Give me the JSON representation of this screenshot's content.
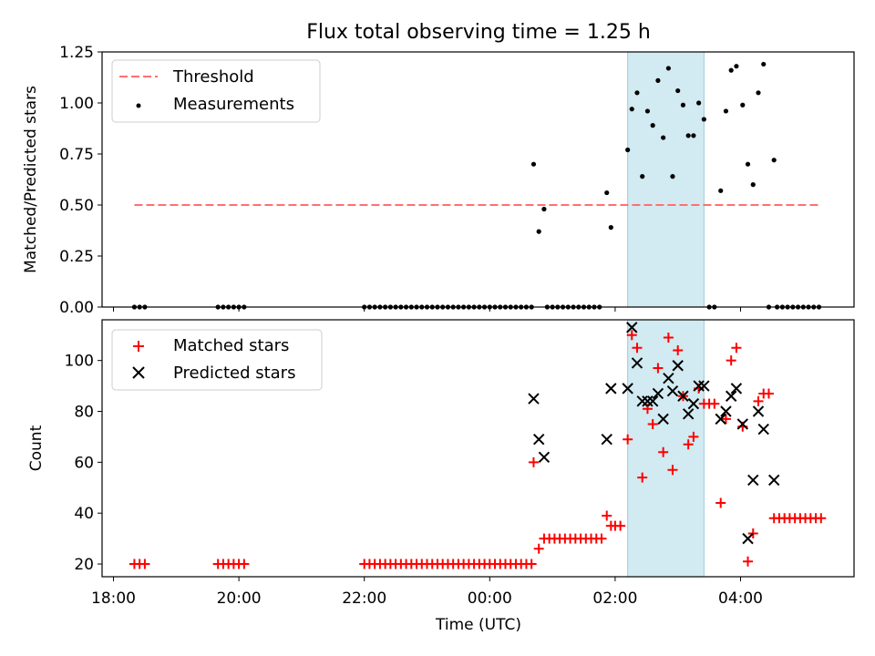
{
  "title": "Flux total observing time = 1.25 h",
  "colors": {
    "threshold": "#ff7070",
    "measurement": "#000000",
    "matched": "#ff0000",
    "predicted": "#000000",
    "span": "#add8e6"
  },
  "chart_data": [
    {
      "type": "scatter",
      "ylabel": "Matched/Predicted stars",
      "ylim": [
        0,
        1.25
      ],
      "yticks": [
        "0.00",
        "0.25",
        "0.50",
        "0.75",
        "1.00",
        "1.25"
      ],
      "legend": {
        "placement": "top-left",
        "entries": [
          "Threshold",
          "Measurements"
        ]
      },
      "threshold": {
        "name": "Threshold",
        "value": 0.5,
        "x_range": [
          "18:20",
          "05:17"
        ],
        "style": "dashed"
      },
      "highlight_span": [
        "02:12",
        "03:25"
      ],
      "measurements": {
        "name": "Measurements",
        "points": [
          [
            "18:20",
            0
          ],
          [
            "18:25",
            0
          ],
          [
            "18:30",
            0
          ],
          [
            "19:40",
            0
          ],
          [
            "19:45",
            0
          ],
          [
            "19:50",
            0
          ],
          [
            "19:55",
            0
          ],
          [
            "20:00",
            0
          ],
          [
            "20:05",
            0
          ],
          [
            "22:00",
            0
          ],
          [
            "22:05",
            0
          ],
          [
            "22:10",
            0
          ],
          [
            "22:15",
            0
          ],
          [
            "22:20",
            0
          ],
          [
            "22:25",
            0
          ],
          [
            "22:30",
            0
          ],
          [
            "22:35",
            0
          ],
          [
            "22:40",
            0
          ],
          [
            "22:45",
            0
          ],
          [
            "22:50",
            0
          ],
          [
            "22:55",
            0
          ],
          [
            "23:00",
            0
          ],
          [
            "23:05",
            0
          ],
          [
            "23:10",
            0
          ],
          [
            "23:15",
            0
          ],
          [
            "23:20",
            0
          ],
          [
            "23:25",
            0
          ],
          [
            "23:30",
            0
          ],
          [
            "23:35",
            0
          ],
          [
            "23:40",
            0
          ],
          [
            "23:45",
            0
          ],
          [
            "23:50",
            0
          ],
          [
            "23:55",
            0
          ],
          [
            "00:00",
            0
          ],
          [
            "00:05",
            0
          ],
          [
            "00:10",
            0
          ],
          [
            "00:15",
            0
          ],
          [
            "00:20",
            0
          ],
          [
            "00:25",
            0
          ],
          [
            "00:30",
            0
          ],
          [
            "00:35",
            0
          ],
          [
            "00:40",
            0
          ],
          [
            "00:42",
            0.7
          ],
          [
            "00:47",
            0.37
          ],
          [
            "00:52",
            0.48
          ],
          [
            "00:55",
            0
          ],
          [
            "01:00",
            0
          ],
          [
            "01:05",
            0
          ],
          [
            "01:10",
            0
          ],
          [
            "01:15",
            0
          ],
          [
            "01:20",
            0
          ],
          [
            "01:25",
            0
          ],
          [
            "01:30",
            0
          ],
          [
            "01:35",
            0
          ],
          [
            "01:40",
            0
          ],
          [
            "01:45",
            0
          ],
          [
            "01:52",
            0.56
          ],
          [
            "01:56",
            0.39
          ],
          [
            "02:12",
            0.77
          ],
          [
            "02:16",
            0.97
          ],
          [
            "02:21",
            1.05
          ],
          [
            "02:26",
            0.64
          ],
          [
            "02:31",
            0.96
          ],
          [
            "02:36",
            0.89
          ],
          [
            "02:41",
            1.11
          ],
          [
            "02:46",
            0.83
          ],
          [
            "02:51",
            1.17
          ],
          [
            "02:55",
            0.64
          ],
          [
            "03:00",
            1.06
          ],
          [
            "03:05",
            0.99
          ],
          [
            "03:10",
            0.84
          ],
          [
            "03:15",
            0.84
          ],
          [
            "03:20",
            1.0
          ],
          [
            "03:25",
            0.92
          ],
          [
            "03:30",
            0
          ],
          [
            "03:35",
            0
          ],
          [
            "03:41",
            0.57
          ],
          [
            "03:46",
            0.96
          ],
          [
            "03:51",
            1.16
          ],
          [
            "03:56",
            1.18
          ],
          [
            "04:02",
            0.99
          ],
          [
            "04:07",
            0.7
          ],
          [
            "04:12",
            0.6
          ],
          [
            "04:17",
            1.05
          ],
          [
            "04:22",
            1.19
          ],
          [
            "04:32",
            0.72
          ],
          [
            "04:27",
            0
          ],
          [
            "04:35",
            0
          ],
          [
            "04:40",
            0
          ],
          [
            "04:45",
            0
          ],
          [
            "04:50",
            0
          ],
          [
            "04:55",
            0
          ],
          [
            "05:00",
            0
          ],
          [
            "05:05",
            0
          ],
          [
            "05:10",
            0
          ],
          [
            "05:15",
            0
          ]
        ]
      }
    },
    {
      "type": "scatter",
      "xlabel": "Time (UTC)",
      "ylabel": "Count",
      "ylim": [
        15,
        116
      ],
      "yticks": [
        "20",
        "40",
        "60",
        "80",
        "100"
      ],
      "xticks": [
        "18:00",
        "20:00",
        "22:00",
        "00:00",
        "02:00",
        "04:00"
      ],
      "legend": {
        "placement": "top-left",
        "entries": [
          "Matched stars",
          "Predicted stars"
        ]
      },
      "highlight_span": [
        "02:12",
        "03:25"
      ],
      "series": [
        {
          "name": "Matched stars",
          "marker": "plus",
          "points": [
            [
              "18:20",
              20
            ],
            [
              "18:25",
              20
            ],
            [
              "18:30",
              20
            ],
            [
              "19:40",
              20
            ],
            [
              "19:45",
              20
            ],
            [
              "19:50",
              20
            ],
            [
              "19:55",
              20
            ],
            [
              "20:00",
              20
            ],
            [
              "20:05",
              20
            ],
            [
              "22:00",
              20
            ],
            [
              "22:05",
              20
            ],
            [
              "22:10",
              20
            ],
            [
              "22:15",
              20
            ],
            [
              "22:20",
              20
            ],
            [
              "22:25",
              20
            ],
            [
              "22:30",
              20
            ],
            [
              "22:35",
              20
            ],
            [
              "22:40",
              20
            ],
            [
              "22:45",
              20
            ],
            [
              "22:50",
              20
            ],
            [
              "22:55",
              20
            ],
            [
              "23:00",
              20
            ],
            [
              "23:05",
              20
            ],
            [
              "23:10",
              20
            ],
            [
              "23:15",
              20
            ],
            [
              "23:20",
              20
            ],
            [
              "23:25",
              20
            ],
            [
              "23:30",
              20
            ],
            [
              "23:35",
              20
            ],
            [
              "23:40",
              20
            ],
            [
              "23:45",
              20
            ],
            [
              "23:50",
              20
            ],
            [
              "23:55",
              20
            ],
            [
              "00:00",
              20
            ],
            [
              "00:05",
              20
            ],
            [
              "00:10",
              20
            ],
            [
              "00:15",
              20
            ],
            [
              "00:20",
              20
            ],
            [
              "00:25",
              20
            ],
            [
              "00:30",
              20
            ],
            [
              "00:35",
              20
            ],
            [
              "00:40",
              20
            ],
            [
              "00:42",
              60
            ],
            [
              "00:47",
              26
            ],
            [
              "00:52",
              30
            ],
            [
              "00:57",
              30
            ],
            [
              "01:02",
              30
            ],
            [
              "01:07",
              30
            ],
            [
              "01:12",
              30
            ],
            [
              "01:17",
              30
            ],
            [
              "01:22",
              30
            ],
            [
              "01:27",
              30
            ],
            [
              "01:32",
              30
            ],
            [
              "01:37",
              30
            ],
            [
              "01:42",
              30
            ],
            [
              "01:47",
              30
            ],
            [
              "01:52",
              39
            ],
            [
              "01:56",
              35
            ],
            [
              "02:00",
              35
            ],
            [
              "02:05",
              35
            ],
            [
              "02:12",
              69
            ],
            [
              "02:16",
              110
            ],
            [
              "02:21",
              105
            ],
            [
              "02:26",
              54
            ],
            [
              "02:31",
              81
            ],
            [
              "02:36",
              75
            ],
            [
              "02:41",
              97
            ],
            [
              "02:46",
              64
            ],
            [
              "02:51",
              109
            ],
            [
              "02:55",
              57
            ],
            [
              "03:00",
              104
            ],
            [
              "03:05",
              86
            ],
            [
              "03:10",
              67
            ],
            [
              "03:15",
              70
            ],
            [
              "03:20",
              89
            ],
            [
              "03:25",
              83
            ],
            [
              "03:30",
              83
            ],
            [
              "03:35",
              83
            ],
            [
              "03:41",
              44
            ],
            [
              "03:46",
              77
            ],
            [
              "03:51",
              100
            ],
            [
              "03:56",
              105
            ],
            [
              "04:02",
              74
            ],
            [
              "04:07",
              21
            ],
            [
              "04:12",
              32
            ],
            [
              "04:17",
              84
            ],
            [
              "04:22",
              87
            ],
            [
              "04:27",
              87
            ],
            [
              "04:32",
              38
            ],
            [
              "04:37",
              38
            ],
            [
              "04:42",
              38
            ],
            [
              "04:47",
              38
            ],
            [
              "04:52",
              38
            ],
            [
              "04:57",
              38
            ],
            [
              "05:02",
              38
            ],
            [
              "05:07",
              38
            ],
            [
              "05:12",
              38
            ],
            [
              "05:17",
              38
            ]
          ]
        },
        {
          "name": "Predicted stars",
          "marker": "x",
          "points": [
            [
              "00:42",
              85
            ],
            [
              "00:47",
              69
            ],
            [
              "00:52",
              62
            ],
            [
              "01:52",
              69
            ],
            [
              "01:56",
              89
            ],
            [
              "02:12",
              89
            ],
            [
              "02:16",
              113
            ],
            [
              "02:21",
              99
            ],
            [
              "02:26",
              84
            ],
            [
              "02:31",
              84
            ],
            [
              "02:36",
              84
            ],
            [
              "02:41",
              87
            ],
            [
              "02:46",
              77
            ],
            [
              "02:51",
              93
            ],
            [
              "02:55",
              88
            ],
            [
              "03:00",
              98
            ],
            [
              "03:05",
              86
            ],
            [
              "03:10",
              79
            ],
            [
              "03:15",
              83
            ],
            [
              "03:20",
              90
            ],
            [
              "03:25",
              90
            ],
            [
              "03:41",
              77
            ],
            [
              "03:46",
              80
            ],
            [
              "03:51",
              86
            ],
            [
              "03:56",
              89
            ],
            [
              "04:02",
              75
            ],
            [
              "04:07",
              30
            ],
            [
              "04:12",
              53
            ],
            [
              "04:17",
              80
            ],
            [
              "04:22",
              73
            ],
            [
              "04:32",
              53
            ]
          ]
        }
      ]
    }
  ]
}
